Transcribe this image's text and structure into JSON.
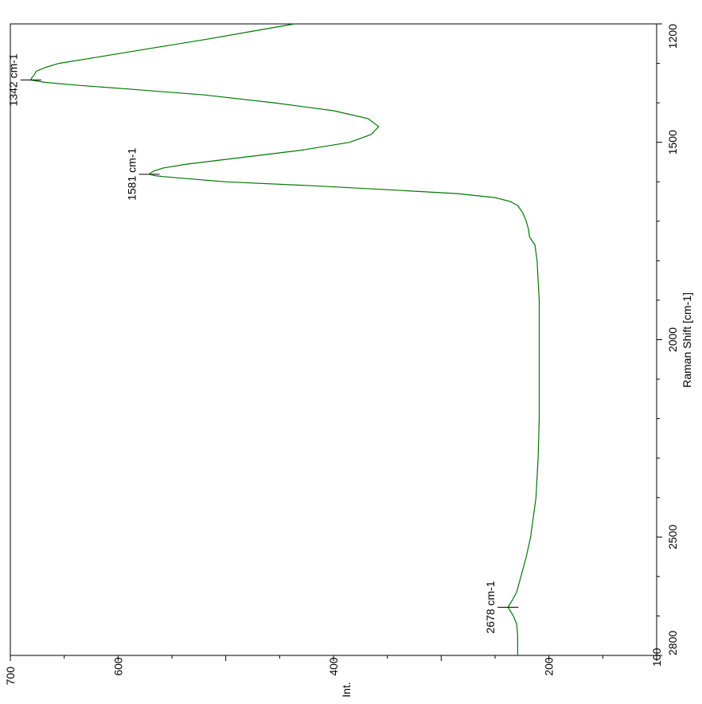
{
  "chart_data": {
    "type": "line",
    "orientation": "rotated-90-clockwise",
    "xlabel": "Raman Shift [cm-1]",
    "ylabel": "Int.",
    "xlim": [
      1200,
      2800
    ],
    "ylim": [
      100,
      700
    ],
    "x_ticks": [
      "1200",
      "1500",
      "2000",
      "2500",
      "2800"
    ],
    "x_tick_values": [
      1200,
      1500,
      2000,
      2500,
      2800
    ],
    "y_ticks": [
      "100",
      "200",
      "400",
      "600",
      "700"
    ],
    "y_tick_values": [
      100,
      200,
      400,
      600,
      700
    ],
    "grid": false,
    "line_color": "#007800",
    "series": [
      {
        "x": [
          1200,
          1220,
          1240,
          1260,
          1280,
          1300,
          1310,
          1320,
          1330,
          1336,
          1342,
          1348,
          1355,
          1365,
          1380,
          1400,
          1420,
          1440,
          1460,
          1480,
          1500,
          1520,
          1540,
          1555,
          1565,
          1572,
          1578,
          1581,
          1585,
          1590,
          1600,
          1610,
          1620,
          1630,
          1640,
          1650,
          1660,
          1680,
          1700,
          1720,
          1740,
          1760,
          1780,
          1800,
          1850,
          1900,
          1950,
          2000,
          2100,
          2200,
          2300,
          2400,
          2500,
          2550,
          2600,
          2640,
          2660,
          2678,
          2700,
          2720,
          2750,
          2800
        ],
        "y": [
          436,
          478,
          520,
          565,
          610,
          655,
          667,
          676,
          678,
          680,
          681,
          668,
          640,
          590,
          520,
          455,
          400,
          368,
          358,
          365,
          385,
          430,
          490,
          535,
          558,
          566,
          570,
          571,
          565,
          545,
          500,
          420,
          350,
          285,
          250,
          236,
          229,
          224,
          221,
          219,
          218,
          213,
          212,
          211,
          210,
          209,
          209,
          209,
          209,
          209,
          210,
          212,
          217,
          221,
          226,
          230,
          234,
          238,
          233,
          230,
          229,
          229
        ]
      }
    ],
    "annotations": [
      {
        "text": "1342 cm-1",
        "x": 1342,
        "y": 681
      },
      {
        "text": "1581 cm-1",
        "x": 1581,
        "y": 571
      },
      {
        "text": "2678 cm-1",
        "x": 2678,
        "y": 238
      }
    ]
  }
}
